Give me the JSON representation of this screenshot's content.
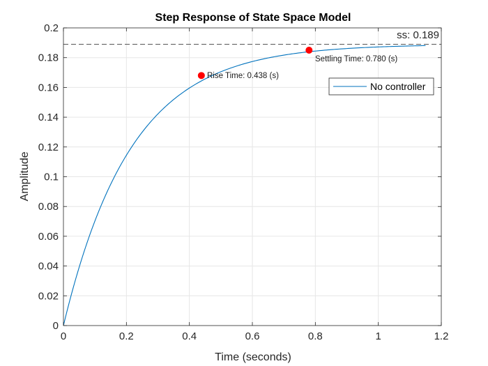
{
  "chart_data": {
    "type": "line",
    "title": "Step Response of State Space Model",
    "xlabel": "Time (seconds)",
    "ylabel": "Amplitude",
    "xlim": [
      0,
      1.2
    ],
    "ylim": [
      0,
      0.2
    ],
    "xticks": [
      0,
      0.2,
      0.4,
      0.6,
      0.8,
      1,
      1.2
    ],
    "xtick_labels": [
      "0",
      "0.2",
      "0.4",
      "0.6",
      "0.8",
      "1",
      "1.2"
    ],
    "yticks": [
      0,
      0.02,
      0.04,
      0.06,
      0.08,
      0.1,
      0.12,
      0.14,
      0.16,
      0.18,
      0.2
    ],
    "ytick_labels": [
      "0",
      "0.02",
      "0.04",
      "0.06",
      "0.08",
      "0.1",
      "0.12",
      "0.14",
      "0.16",
      "0.18",
      "0.2"
    ],
    "grid": true,
    "legend_position": "top-right",
    "series": [
      {
        "name": "No controller",
        "color": "#0072BD",
        "x": [
          0,
          0.05,
          0.1,
          0.15,
          0.2,
          0.25,
          0.3,
          0.35,
          0.4,
          0.438,
          0.5,
          0.55,
          0.6,
          0.65,
          0.7,
          0.78,
          0.85,
          0.9,
          0.95,
          1.0,
          1.05,
          1.1,
          1.15
        ],
        "y": [
          0,
          0.0465,
          0.0822,
          0.1097,
          0.1308,
          0.1469,
          0.1593,
          0.1683,
          0.175,
          0.168,
          0.1752,
          0.1782,
          0.1807,
          0.1827,
          0.1843,
          0.185,
          0.1864,
          0.187,
          0.1875,
          0.1878,
          0.1881,
          0.1884,
          0.1885
        ]
      }
    ],
    "steady_state": {
      "value": 0.189,
      "label": "ss: 0.189"
    },
    "annotations": [
      {
        "x": 0.438,
        "y": 0.168,
        "label": "Rise Time: 0.438 (s)"
      },
      {
        "x": 0.78,
        "y": 0.185,
        "label": "Settling Time: 0.780 (s)"
      }
    ],
    "colors": {
      "marker": "#FF0000",
      "grid": "#e6e6e6",
      "axis": "#262626",
      "ss_line": "#555555"
    }
  }
}
